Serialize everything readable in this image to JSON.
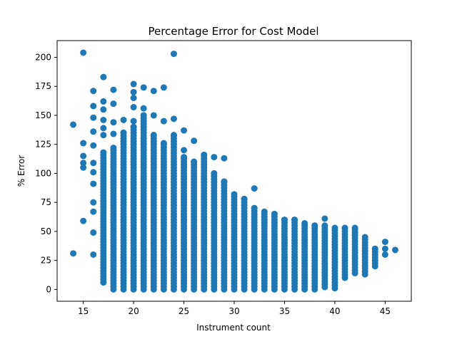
{
  "chart_data": {
    "type": "scatter",
    "title": "Percentage Error for Cost Model",
    "xlabel": "Instrument count",
    "ylabel": "% Error",
    "xlim": [
      12.4,
      47.6
    ],
    "ylim": [
      -10.2,
      214.4
    ],
    "xticks": [
      15,
      20,
      25,
      30,
      35,
      40,
      45
    ],
    "yticks": [
      0,
      25,
      50,
      75,
      100,
      125,
      150,
      175,
      200
    ],
    "grid": false,
    "legend": "none",
    "color": "#1f77b4",
    "dense_columns": [
      {
        "x": 17,
        "y_min": 6,
        "y_max": 118,
        "step": 2.5
      },
      {
        "x": 18,
        "y_min": 0,
        "y_max": 122,
        "step": 2.5
      },
      {
        "x": 19,
        "y_min": 0,
        "y_max": 135,
        "step": 2.5
      },
      {
        "x": 20,
        "y_min": 0,
        "y_max": 140,
        "step": 2.5
      },
      {
        "x": 21,
        "y_min": 0,
        "y_max": 150,
        "step": 2.5
      },
      {
        "x": 22,
        "y_min": 0,
        "y_max": 133,
        "step": 2.5
      },
      {
        "x": 23,
        "y_min": 0,
        "y_max": 126,
        "step": 2.5
      },
      {
        "x": 24,
        "y_min": 0,
        "y_max": 133,
        "step": 2.5
      },
      {
        "x": 25,
        "y_min": 0,
        "y_max": 114,
        "step": 2.5
      },
      {
        "x": 26,
        "y_min": 0,
        "y_max": 110,
        "step": 2.5
      },
      {
        "x": 27,
        "y_min": 0,
        "y_max": 116,
        "step": 2.5
      },
      {
        "x": 28,
        "y_min": 0,
        "y_max": 100,
        "step": 2.5
      },
      {
        "x": 29,
        "y_min": 0,
        "y_max": 93,
        "step": 2.5
      },
      {
        "x": 30,
        "y_min": 0,
        "y_max": 82,
        "step": 2.5
      },
      {
        "x": 31,
        "y_min": 0,
        "y_max": 78,
        "step": 2.5
      },
      {
        "x": 32,
        "y_min": 0,
        "y_max": 70,
        "step": 2.5
      },
      {
        "x": 33,
        "y_min": 0,
        "y_max": 67,
        "step": 2.5
      },
      {
        "x": 34,
        "y_min": 0,
        "y_max": 65,
        "step": 2.5
      },
      {
        "x": 35,
        "y_min": 0,
        "y_max": 60,
        "step": 2.5
      },
      {
        "x": 36,
        "y_min": 0,
        "y_max": 60,
        "step": 2.5
      },
      {
        "x": 37,
        "y_min": 0,
        "y_max": 57,
        "step": 2.5
      },
      {
        "x": 38,
        "y_min": 0,
        "y_max": 55,
        "step": 2.5
      },
      {
        "x": 39,
        "y_min": 2,
        "y_max": 55,
        "step": 2.5
      },
      {
        "x": 40,
        "y_min": 1,
        "y_max": 53,
        "step": 2.5
      },
      {
        "x": 41,
        "y_min": 10,
        "y_max": 53,
        "step": 2.5
      },
      {
        "x": 42,
        "y_min": 14,
        "y_max": 53,
        "step": 2.5
      },
      {
        "x": 43,
        "y_min": 13,
        "y_max": 45,
        "step": 2.5
      },
      {
        "x": 44,
        "y_min": 20,
        "y_max": 35,
        "step": 2.5
      }
    ],
    "points": [
      {
        "x": 14,
        "y": 142
      },
      {
        "x": 14,
        "y": 31
      },
      {
        "x": 15,
        "y": 204
      },
      {
        "x": 15,
        "y": 126
      },
      {
        "x": 15,
        "y": 115
      },
      {
        "x": 15,
        "y": 109
      },
      {
        "x": 15,
        "y": 105
      },
      {
        "x": 15,
        "y": 59
      },
      {
        "x": 16,
        "y": 171
      },
      {
        "x": 16,
        "y": 158
      },
      {
        "x": 16,
        "y": 148
      },
      {
        "x": 16,
        "y": 136
      },
      {
        "x": 16,
        "y": 124
      },
      {
        "x": 16,
        "y": 109
      },
      {
        "x": 16,
        "y": 101
      },
      {
        "x": 16,
        "y": 91
      },
      {
        "x": 16,
        "y": 75
      },
      {
        "x": 16,
        "y": 67
      },
      {
        "x": 16,
        "y": 49
      },
      {
        "x": 16,
        "y": 30
      },
      {
        "x": 17,
        "y": 183
      },
      {
        "x": 17,
        "y": 162
      },
      {
        "x": 17,
        "y": 155
      },
      {
        "x": 17,
        "y": 146
      },
      {
        "x": 17,
        "y": 139
      },
      {
        "x": 17,
        "y": 133
      },
      {
        "x": 18,
        "y": 172
      },
      {
        "x": 18,
        "y": 160
      },
      {
        "x": 18,
        "y": 144
      },
      {
        "x": 18,
        "y": 134
      },
      {
        "x": 19,
        "y": 146
      },
      {
        "x": 20,
        "y": 177
      },
      {
        "x": 20,
        "y": 170
      },
      {
        "x": 20,
        "y": 165
      },
      {
        "x": 20,
        "y": 157
      },
      {
        "x": 20,
        "y": 145
      },
      {
        "x": 21,
        "y": 174
      },
      {
        "x": 21,
        "y": 156
      },
      {
        "x": 22,
        "y": 171
      },
      {
        "x": 22,
        "y": 150
      },
      {
        "x": 23,
        "y": 174
      },
      {
        "x": 23,
        "y": 145
      },
      {
        "x": 24,
        "y": 203
      },
      {
        "x": 24,
        "y": 147
      },
      {
        "x": 25,
        "y": 137
      },
      {
        "x": 25,
        "y": 120
      },
      {
        "x": 26,
        "y": 128
      },
      {
        "x": 28,
        "y": 114
      },
      {
        "x": 29,
        "y": 113
      },
      {
        "x": 32,
        "y": 87
      },
      {
        "x": 39,
        "y": 61
      },
      {
        "x": 45,
        "y": 41
      },
      {
        "x": 45,
        "y": 35
      },
      {
        "x": 45,
        "y": 30
      },
      {
        "x": 46,
        "y": 34
      }
    ]
  }
}
